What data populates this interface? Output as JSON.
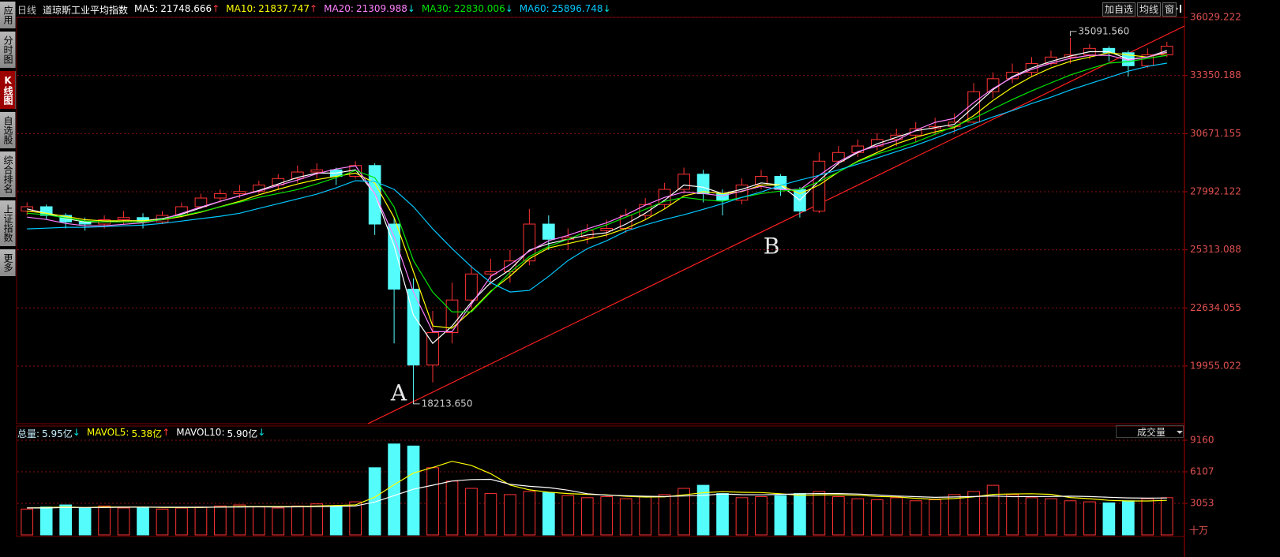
{
  "ui": {
    "sidebar": [
      "应用",
      "分时图",
      "K线图",
      "自选股",
      "综合排名",
      "上证指数",
      "更多"
    ],
    "period": "日线",
    "toolbar": [
      "加自选",
      "均线",
      "窗"
    ],
    "volume_selector": "成交量"
  },
  "chart_data": [
    {
      "type": "candlestick",
      "title": "道琼斯工业平均指数",
      "open": [
        27100,
        27300,
        26900,
        26600,
        26500,
        26700,
        26800,
        26600,
        26900,
        27300,
        27700,
        27900,
        28000,
        28300,
        28600,
        28900,
        29000,
        28700,
        29200,
        26500,
        23500,
        20000,
        21500,
        23000,
        24200,
        24300,
        24800,
        26500,
        25800,
        25900,
        26200,
        26300,
        26900,
        27400,
        28100,
        28800,
        27900,
        27600,
        28300,
        28700,
        28100,
        27100,
        29400,
        29800,
        30100,
        30400,
        30600,
        30900,
        31000,
        31200,
        32600,
        33200,
        33500,
        33900,
        34200,
        34300,
        34600,
        34400,
        33800,
        34300
      ],
      "high": [
        27500,
        27400,
        27000,
        26800,
        26900,
        27100,
        27000,
        27100,
        27500,
        27900,
        28100,
        28300,
        28500,
        28800,
        29200,
        29300,
        29100,
        29400,
        29300,
        26800,
        24000,
        22500,
        23800,
        24600,
        24900,
        25300,
        27200,
        26900,
        26300,
        26500,
        26700,
        27200,
        27700,
        28400,
        29100,
        29000,
        28100,
        28600,
        29000,
        28800,
        28200,
        29800,
        30100,
        30400,
        30700,
        30900,
        31200,
        31400,
        31600,
        33000,
        33500,
        33900,
        34200,
        34500,
        35091.56,
        34800,
        34700,
        34500,
        34600,
        34900
      ],
      "low": [
        26900,
        26700,
        26300,
        26200,
        26300,
        26500,
        26300,
        26500,
        26800,
        27200,
        27500,
        27700,
        27900,
        28100,
        28400,
        28600,
        28300,
        28600,
        26000,
        21000,
        18213.65,
        19200,
        21000,
        22600,
        23700,
        23800,
        24600,
        25300,
        25300,
        25600,
        25900,
        26100,
        26700,
        27200,
        27900,
        27500,
        26900,
        27400,
        28100,
        27800,
        26800,
        27000,
        29200,
        29600,
        29900,
        30100,
        30300,
        30600,
        30700,
        31100,
        32300,
        33000,
        33300,
        33800,
        33900,
        34100,
        34000,
        33300,
        33700,
        34200
      ],
      "close": [
        27300,
        26900,
        26600,
        26500,
        26700,
        26800,
        26600,
        26900,
        27300,
        27700,
        27900,
        28000,
        28300,
        28600,
        28900,
        29000,
        28700,
        29200,
        26500,
        23500,
        20000,
        21500,
        23000,
        24200,
        24300,
        24800,
        26500,
        25800,
        25900,
        26200,
        26300,
        26900,
        27400,
        28100,
        28800,
        27900,
        27600,
        28300,
        28700,
        28100,
        27100,
        29400,
        29800,
        30100,
        30400,
        30600,
        30900,
        31000,
        31200,
        32600,
        33200,
        33500,
        33900,
        34200,
        34300,
        34600,
        34400,
        33800,
        34300,
        34700
      ],
      "up_color": "#ff3232",
      "down_color": "#54fcfc",
      "series": [
        {
          "name": "MA5:",
          "color": "#ffffff",
          "latest": 21748.666,
          "trend": "↑",
          "values": [
            27200,
            27000,
            26750,
            26600,
            26600,
            26650,
            26650,
            26750,
            26950,
            27250,
            27550,
            27800,
            28050,
            28350,
            28650,
            28850,
            28850,
            29000,
            27900,
            25500,
            22300,
            21000,
            21800,
            22900,
            23800,
            24400,
            25300,
            25600,
            25800,
            26000,
            26100,
            26500,
            27000,
            27600,
            28300,
            28200,
            27900,
            28100,
            28400,
            28300,
            27600,
            28500,
            29300,
            29800,
            30200,
            30500,
            30800,
            30950,
            31100,
            31900,
            32700,
            33300,
            33700,
            34000,
            34250,
            34450,
            34450,
            34100,
            34200,
            34500
          ]
        },
        {
          "name": "MA10:",
          "color": "#ffff00",
          "latest": 21837.747,
          "trend": "↑",
          "values": [
            27100,
            27000,
            26850,
            26700,
            26650,
            26650,
            26650,
            26700,
            26850,
            27050,
            27300,
            27550,
            27850,
            28100,
            28350,
            28550,
            28700,
            28850,
            28400,
            26800,
            24300,
            21800,
            21700,
            22500,
            23400,
            24100,
            24900,
            25400,
            25600,
            25800,
            26000,
            26300,
            26700,
            27200,
            27800,
            28000,
            27900,
            28000,
            28300,
            28300,
            27900,
            28300,
            28900,
            29400,
            29800,
            30200,
            30500,
            30750,
            30950,
            31500,
            32200,
            32800,
            33300,
            33700,
            34000,
            34200,
            34400,
            34300,
            34200,
            34400
          ]
        },
        {
          "name": "MA20:",
          "color": "#ff80ff",
          "latest": 21309.988,
          "trend": "↓",
          "values": [
            26820,
            26710,
            26530,
            26420,
            26420,
            26490,
            26560,
            26710,
            27000,
            27290,
            27550,
            27800,
            28020,
            28280,
            28530,
            28820,
            29040,
            29190,
            27910,
            25910,
            23360,
            21540,
            21540,
            22810,
            24090,
            24630,
            25250,
            25730,
            25980,
            26280,
            26560,
            26930,
            27370,
            27730,
            27980,
            27910,
            27800,
            28020,
            28240,
            28090,
            28090,
            28750,
            29370,
            29840,
            30100,
            30350,
            30830,
            31190,
            31370,
            32100,
            32750,
            33260,
            33630,
            33920,
            34140,
            34280,
            34280,
            34060,
            34210,
            34430
          ]
        },
        {
          "name": "MA30:",
          "color": "#00e600",
          "latest": 22830.006,
          "trend": "↓",
          "values": [
            27000,
            26930,
            26780,
            26640,
            26600,
            26600,
            26600,
            26710,
            26890,
            27070,
            27290,
            27510,
            27730,
            27910,
            28090,
            28350,
            28640,
            28970,
            28640,
            27290,
            24820,
            23360,
            22450,
            22450,
            23360,
            24270,
            25000,
            25470,
            25800,
            26170,
            26460,
            26820,
            27180,
            27550,
            27730,
            27620,
            27550,
            27730,
            27910,
            28020,
            28090,
            28460,
            28900,
            29370,
            29730,
            29990,
            30280,
            30640,
            31010,
            31370,
            31810,
            32240,
            32640,
            33010,
            33370,
            33660,
            33920,
            33990,
            34140,
            34280
          ]
        },
        {
          "name": "MA60:",
          "color": "#00c8ff",
          "latest": 25896.748,
          "trend": "↓",
          "values": [
            26280,
            26310,
            26350,
            26350,
            26380,
            26420,
            26450,
            26530,
            26640,
            26750,
            26860,
            27000,
            27220,
            27440,
            27660,
            27880,
            28170,
            28500,
            28460,
            28100,
            27300,
            26280,
            25370,
            24530,
            23800,
            23370,
            23440,
            24090,
            24820,
            25370,
            25730,
            26170,
            26460,
            26710,
            26930,
            27180,
            27440,
            27730,
            27980,
            28280,
            28530,
            28750,
            29000,
            29260,
            29550,
            29840,
            30130,
            30460,
            30790,
            31120,
            31440,
            31730,
            32060,
            32350,
            32680,
            32970,
            33260,
            33550,
            33770,
            33920
          ]
        }
      ],
      "extreme_labels": {
        "high": "35091.560",
        "low": "18213.650"
      },
      "annotations": [
        "A",
        "B"
      ],
      "ylim": [
        17298,
        36540
      ],
      "yticks": [
        36029.222,
        33350.188,
        30671.155,
        27992.122,
        25313.088,
        22634.055,
        19955.022
      ],
      "grid": true
    },
    {
      "type": "volume",
      "total_label": "总量:",
      "total": "5.95亿",
      "total_trend": "↓",
      "values": [
        2500,
        2700,
        2900,
        2600,
        2800,
        2600,
        2700,
        2500,
        2600,
        2700,
        2800,
        2900,
        2700,
        2600,
        2800,
        3000,
        2800,
        3200,
        6500,
        8800,
        8600,
        6500,
        5200,
        4500,
        4000,
        3900,
        4200,
        4100,
        3800,
        3600,
        3700,
        3500,
        3700,
        3900,
        4500,
        4800,
        4000,
        3600,
        3700,
        3800,
        4000,
        4200,
        3700,
        3500,
        3400,
        3600,
        3300,
        3400,
        3900,
        4200,
        4800,
        3900,
        3600,
        3500,
        3300,
        3200,
        3100,
        3300,
        3500,
        3600
      ],
      "series": [
        {
          "name": "MAVOL5:",
          "color": "#ffff00",
          "latest": "5.38亿",
          "trend": "↑",
          "values": [
            2600,
            2650,
            2700,
            2650,
            2700,
            2700,
            2700,
            2650,
            2650,
            2650,
            2700,
            2750,
            2750,
            2750,
            2750,
            2800,
            2850,
            2900,
            3650,
            4850,
            5980,
            6520,
            7120,
            6720,
            5920,
            4820,
            4360,
            4140,
            4000,
            3920,
            3880,
            3740,
            3660,
            3680,
            3880,
            4080,
            4180,
            4120,
            4100,
            3980,
            3820,
            3860,
            3880,
            3840,
            3720,
            3680,
            3540,
            3440,
            3520,
            3680,
            3920,
            3960,
            3980,
            3920,
            3620,
            3500,
            3340,
            3280,
            3280,
            3340
          ]
        },
        {
          "name": "MAVOL10:",
          "color": "#ffffff",
          "latest": "5.90亿",
          "trend": "↓",
          "values": [
            2600,
            2600,
            2650,
            2650,
            2650,
            2680,
            2690,
            2690,
            2680,
            2680,
            2690,
            2700,
            2720,
            2700,
            2720,
            2750,
            2760,
            2800,
            3180,
            3800,
            4420,
            4810,
            5210,
            5360,
            5380,
            4900,
            4700,
            4580,
            4330,
            3980,
            3850,
            3790,
            3740,
            3720,
            3760,
            3820,
            3960,
            3890,
            3880,
            3920,
            3970,
            4000,
            4000,
            3950,
            3860,
            3760,
            3700,
            3630,
            3670,
            3710,
            3770,
            3700,
            3710,
            3720,
            3750,
            3710,
            3640,
            3580,
            3560,
            3570
          ]
        }
      ],
      "ylim": [
        0,
        10150
      ],
      "yticks": [
        9160,
        6107,
        3053
      ],
      "y_unit": "十万",
      "grid": true
    }
  ]
}
